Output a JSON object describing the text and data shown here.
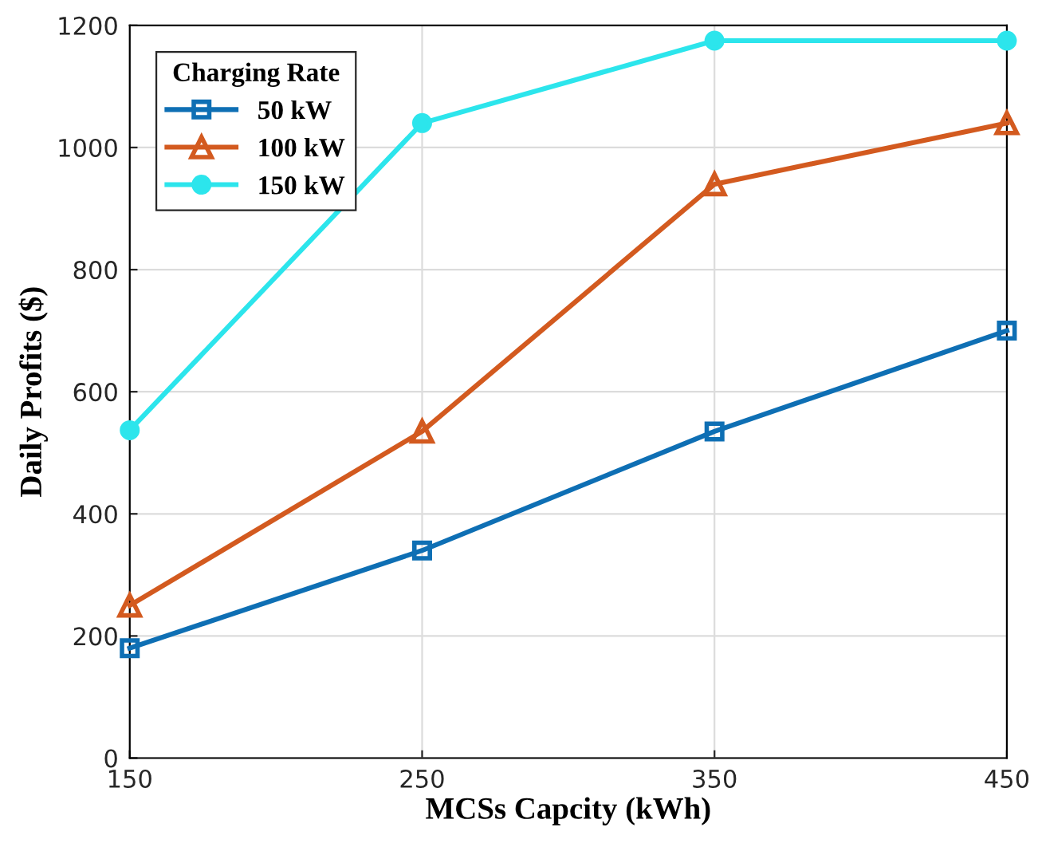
{
  "chart_data": {
    "type": "line",
    "xlabel": "MCSs Capcity (kWh)",
    "ylabel": "Daily Profits ($)",
    "legend_title": "Charging Rate",
    "x": [
      150,
      250,
      350,
      450
    ],
    "xlim": [
      150,
      450
    ],
    "xticks": [
      150,
      250,
      350,
      450
    ],
    "ylim": [
      0,
      1200
    ],
    "yticks": [
      0,
      200,
      400,
      600,
      800,
      1000,
      1200
    ],
    "grid": true,
    "legend": "top left",
    "line_style": "solid",
    "series": [
      {
        "name": "50 kW",
        "color": "#0e6fb4",
        "marker": "square",
        "values": [
          180,
          340,
          535,
          700
        ]
      },
      {
        "name": "100 kW",
        "color": "#d35a1f",
        "marker": "triangle",
        "values": [
          250,
          535,
          940,
          1040
        ]
      },
      {
        "name": "150 kW",
        "color": "#2ce5ec",
        "marker": "circle",
        "values": [
          537,
          1040,
          1175,
          1175
        ]
      }
    ]
  }
}
